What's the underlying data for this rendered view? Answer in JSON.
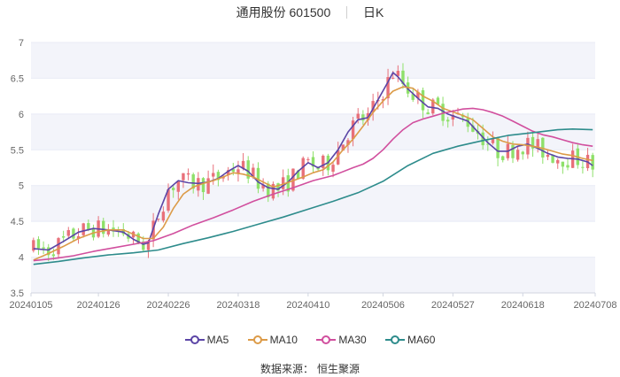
{
  "header": {
    "stock": "通用股份 601500",
    "period": "日K"
  },
  "source": {
    "label": "数据来源：",
    "name": "恒生聚源"
  },
  "colors": {
    "up": "#e8707a",
    "down": "#8ee06a",
    "grid": "#e8ebf5",
    "band": "#f3f4fa",
    "axis": "#d0d4e0"
  },
  "chart_data": {
    "type": "candlestick",
    "ylim": [
      3.5,
      7
    ],
    "yticks": [
      "3.5",
      "4",
      "4.5",
      "5",
      "5.5",
      "6",
      "6.5",
      "7"
    ],
    "xticks": [
      "20240105",
      "20240126",
      "20240226",
      "20240318",
      "20240410",
      "20240506",
      "20240527",
      "20240618",
      "20240708"
    ],
    "xtick_index": [
      0,
      13,
      27,
      41,
      55,
      70,
      84,
      98,
      112
    ],
    "n": 113,
    "legend": [
      {
        "name": "MA5",
        "color": "#5b45a6"
      },
      {
        "name": "MA10",
        "color": "#dc9b48"
      },
      {
        "name": "MA30",
        "color": "#d14f9e"
      },
      {
        "name": "MA60",
        "color": "#2e8c8c"
      }
    ],
    "ma_series": [
      {
        "name": "MA5",
        "color": "#5b45a6",
        "points": [
          [
            0,
            4.12
          ],
          [
            3,
            4.1
          ],
          [
            6,
            4.22
          ],
          [
            9,
            4.35
          ],
          [
            12,
            4.4
          ],
          [
            15,
            4.38
          ],
          [
            18,
            4.35
          ],
          [
            20,
            4.25
          ],
          [
            22,
            4.18
          ],
          [
            23,
            4.2
          ],
          [
            25,
            4.6
          ],
          [
            27,
            4.95
          ],
          [
            29,
            5.07
          ],
          [
            31,
            5.04
          ],
          [
            33,
            5.03
          ],
          [
            35,
            5.05
          ],
          [
            37,
            5.1
          ],
          [
            39,
            5.2
          ],
          [
            41,
            5.28
          ],
          [
            43,
            5.2
          ],
          [
            45,
            5.05
          ],
          [
            47,
            4.97
          ],
          [
            49,
            4.95
          ],
          [
            51,
            5.05
          ],
          [
            53,
            5.2
          ],
          [
            55,
            5.32
          ],
          [
            57,
            5.25
          ],
          [
            59,
            5.32
          ],
          [
            61,
            5.5
          ],
          [
            63,
            5.75
          ],
          [
            65,
            5.92
          ],
          [
            67,
            5.95
          ],
          [
            69,
            6.2
          ],
          [
            71,
            6.45
          ],
          [
            72,
            6.58
          ],
          [
            73,
            6.52
          ],
          [
            75,
            6.35
          ],
          [
            77,
            6.22
          ],
          [
            79,
            6.1
          ],
          [
            81,
            6.08
          ],
          [
            83,
            6.0
          ],
          [
            85,
            5.95
          ],
          [
            87,
            5.9
          ],
          [
            89,
            5.75
          ],
          [
            91,
            5.6
          ],
          [
            93,
            5.48
          ],
          [
            95,
            5.48
          ],
          [
            97,
            5.55
          ],
          [
            99,
            5.58
          ],
          [
            101,
            5.52
          ],
          [
            103,
            5.45
          ],
          [
            105,
            5.4
          ],
          [
            107,
            5.38
          ],
          [
            109,
            5.37
          ],
          [
            111,
            5.33
          ],
          [
            112,
            5.28
          ]
        ]
      },
      {
        "name": "MA10",
        "color": "#dc9b48",
        "points": [
          [
            0,
            3.96
          ],
          [
            3,
            4.05
          ],
          [
            6,
            4.15
          ],
          [
            9,
            4.26
          ],
          [
            12,
            4.34
          ],
          [
            15,
            4.38
          ],
          [
            18,
            4.38
          ],
          [
            20,
            4.32
          ],
          [
            22,
            4.26
          ],
          [
            24,
            4.26
          ],
          [
            26,
            4.42
          ],
          [
            28,
            4.68
          ],
          [
            30,
            4.88
          ],
          [
            32,
            4.98
          ],
          [
            34,
            5.03
          ],
          [
            36,
            5.07
          ],
          [
            38,
            5.12
          ],
          [
            40,
            5.18
          ],
          [
            42,
            5.16
          ],
          [
            44,
            5.12
          ],
          [
            46,
            5.05
          ],
          [
            48,
            4.98
          ],
          [
            50,
            5.02
          ],
          [
            52,
            5.07
          ],
          [
            54,
            5.12
          ],
          [
            56,
            5.18
          ],
          [
            58,
            5.22
          ],
          [
            60,
            5.33
          ],
          [
            62,
            5.5
          ],
          [
            64,
            5.65
          ],
          [
            66,
            5.83
          ],
          [
            68,
            6.02
          ],
          [
            70,
            6.18
          ],
          [
            72,
            6.32
          ],
          [
            74,
            6.38
          ],
          [
            76,
            6.36
          ],
          [
            78,
            6.25
          ],
          [
            80,
            6.18
          ],
          [
            82,
            6.08
          ],
          [
            84,
            6.03
          ],
          [
            86,
            5.98
          ],
          [
            88,
            5.92
          ],
          [
            90,
            5.8
          ],
          [
            92,
            5.68
          ],
          [
            94,
            5.62
          ],
          [
            96,
            5.58
          ],
          [
            98,
            5.57
          ],
          [
            100,
            5.55
          ],
          [
            102,
            5.52
          ],
          [
            104,
            5.48
          ],
          [
            106,
            5.44
          ],
          [
            108,
            5.42
          ],
          [
            110,
            5.38
          ],
          [
            112,
            5.35
          ]
        ]
      },
      {
        "name": "MA30",
        "color": "#d14f9e",
        "points": [
          [
            0,
            3.95
          ],
          [
            4,
            3.98
          ],
          [
            8,
            4.02
          ],
          [
            12,
            4.08
          ],
          [
            16,
            4.13
          ],
          [
            20,
            4.18
          ],
          [
            24,
            4.23
          ],
          [
            28,
            4.33
          ],
          [
            32,
            4.45
          ],
          [
            36,
            4.55
          ],
          [
            40,
            4.66
          ],
          [
            44,
            4.78
          ],
          [
            48,
            4.88
          ],
          [
            52,
            4.97
          ],
          [
            56,
            5.07
          ],
          [
            60,
            5.14
          ],
          [
            64,
            5.25
          ],
          [
            66,
            5.3
          ],
          [
            68,
            5.38
          ],
          [
            70,
            5.5
          ],
          [
            72,
            5.65
          ],
          [
            74,
            5.78
          ],
          [
            76,
            5.88
          ],
          [
            78,
            5.93
          ],
          [
            80,
            5.97
          ],
          [
            82,
            6.01
          ],
          [
            84,
            6.04
          ],
          [
            86,
            6.07
          ],
          [
            88,
            6.08
          ],
          [
            90,
            6.06
          ],
          [
            92,
            6.02
          ],
          [
            94,
            5.97
          ],
          [
            96,
            5.9
          ],
          [
            98,
            5.83
          ],
          [
            100,
            5.76
          ],
          [
            102,
            5.71
          ],
          [
            104,
            5.68
          ],
          [
            106,
            5.64
          ],
          [
            108,
            5.6
          ],
          [
            110,
            5.57
          ],
          [
            112,
            5.55
          ]
        ]
      },
      {
        "name": "MA60",
        "color": "#2e8c8c",
        "points": [
          [
            0,
            3.9
          ],
          [
            5,
            3.94
          ],
          [
            10,
            3.99
          ],
          [
            15,
            4.03
          ],
          [
            20,
            4.06
          ],
          [
            25,
            4.1
          ],
          [
            30,
            4.19
          ],
          [
            35,
            4.27
          ],
          [
            40,
            4.36
          ],
          [
            45,
            4.46
          ],
          [
            50,
            4.56
          ],
          [
            55,
            4.67
          ],
          [
            60,
            4.78
          ],
          [
            65,
            4.9
          ],
          [
            70,
            5.06
          ],
          [
            75,
            5.28
          ],
          [
            80,
            5.45
          ],
          [
            85,
            5.55
          ],
          [
            90,
            5.63
          ],
          [
            95,
            5.7
          ],
          [
            100,
            5.74
          ],
          [
            105,
            5.78
          ],
          [
            108,
            5.79
          ],
          [
            112,
            5.78
          ]
        ]
      }
    ]
  }
}
